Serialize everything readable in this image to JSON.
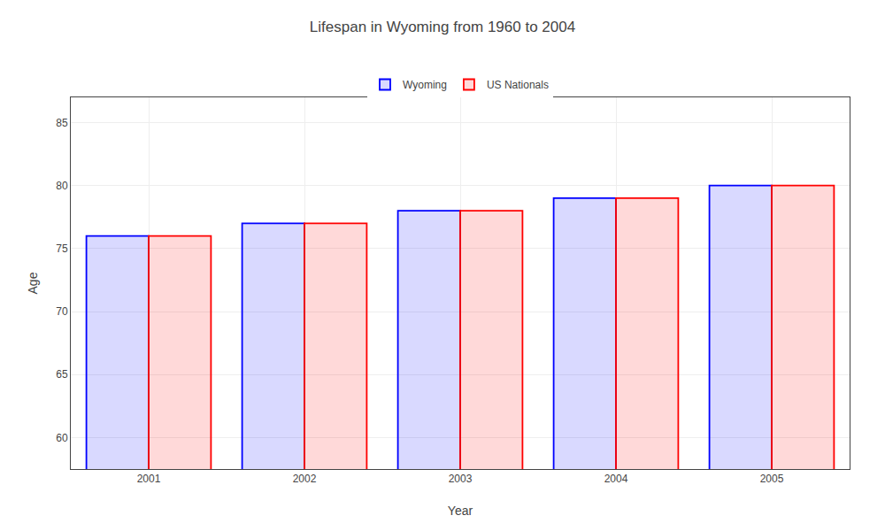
{
  "chart_data": {
    "type": "bar",
    "title": "Lifespan in Wyoming from 1960 to 2004",
    "xlabel": "Year",
    "ylabel": "Age",
    "categories": [
      "2001",
      "2002",
      "2003",
      "2004",
      "2005"
    ],
    "series": [
      {
        "name": "Wyoming",
        "color": "#0000ff",
        "values": [
          76,
          77,
          78,
          79,
          80
        ]
      },
      {
        "name": "US Nationals",
        "color": "#ff0000",
        "values": [
          76,
          77,
          78,
          79,
          80
        ]
      }
    ],
    "ylim": [
      57.5,
      87
    ],
    "yticks": [
      60,
      65,
      70,
      75,
      80,
      85
    ],
    "grid": true,
    "legend": "top"
  }
}
